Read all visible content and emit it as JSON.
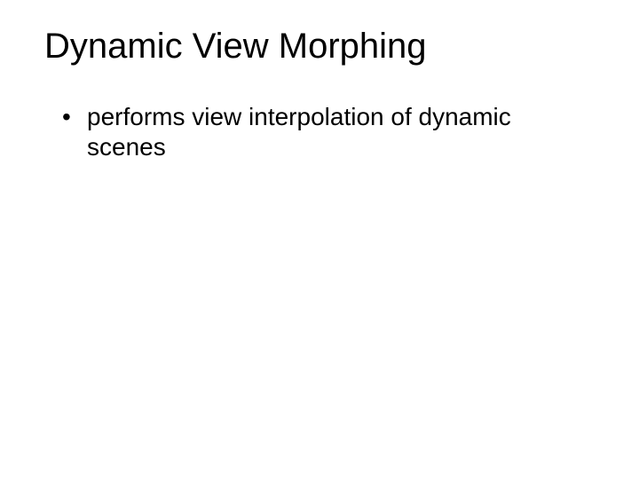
{
  "slide": {
    "title": "Dynamic View Morphing",
    "bullets": [
      "performs view interpolation of dynamic scenes"
    ],
    "title_fontsize": 40,
    "body_fontsize": 28,
    "text_color": "#000000",
    "background_color": "#ffffff",
    "font_family": "Arial"
  }
}
